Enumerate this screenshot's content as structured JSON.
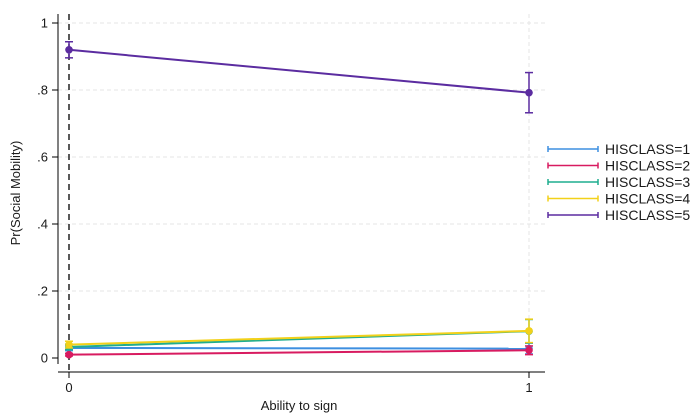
{
  "chart_data": {
    "type": "line",
    "title": "",
    "xlabel": "Ability to sign",
    "ylabel": "Pr(Social Mobility)",
    "x_ticks": [
      {
        "value": 0,
        "label": "0"
      },
      {
        "value": 1,
        "label": "1"
      }
    ],
    "y_ticks": [
      {
        "value": 0,
        "label": "0"
      },
      {
        "value": 0.2,
        "label": ".2"
      },
      {
        "value": 0.4,
        "label": ".4"
      },
      {
        "value": 0.6,
        "label": ".6"
      },
      {
        "value": 0.8,
        "label": ".8"
      },
      {
        "value": 1,
        "label": "1"
      }
    ],
    "xlim": [
      0,
      1
    ],
    "ylim": [
      0,
      1
    ],
    "grid": true,
    "reference_line": {
      "x": 0,
      "style": "dashed"
    },
    "legend_position": "right",
    "series": [
      {
        "name": "HISCLASS=1",
        "color": "#3d8fe0",
        "x": [
          0,
          1
        ],
        "values": [
          0.03,
          0.028
        ],
        "ci_low": [
          0.022,
          0.012
        ],
        "ci_high": [
          0.038,
          0.044
        ]
      },
      {
        "name": "HISCLASS=2",
        "color": "#d81b60",
        "x": [
          0,
          1
        ],
        "values": [
          0.01,
          0.023
        ],
        "ci_low": [
          0.006,
          0.01
        ],
        "ci_high": [
          0.014,
          0.036
        ]
      },
      {
        "name": "HISCLASS=3",
        "color": "#1fad8f",
        "x": [
          0,
          1
        ],
        "values": [
          0.033,
          0.08
        ],
        "ci_low": [
          0.025,
          0.045
        ],
        "ci_high": [
          0.041,
          0.115
        ]
      },
      {
        "name": "HISCLASS=4",
        "color": "#f2d11a",
        "x": [
          0,
          1
        ],
        "values": [
          0.04,
          0.081
        ],
        "ci_low": [
          0.03,
          0.046
        ],
        "ci_high": [
          0.05,
          0.116
        ]
      },
      {
        "name": "HISCLASS=5",
        "color": "#5b2ca0",
        "x": [
          0,
          1
        ],
        "values": [
          0.92,
          0.792
        ],
        "ci_low": [
          0.896,
          0.732
        ],
        "ci_high": [
          0.944,
          0.852
        ]
      }
    ]
  }
}
